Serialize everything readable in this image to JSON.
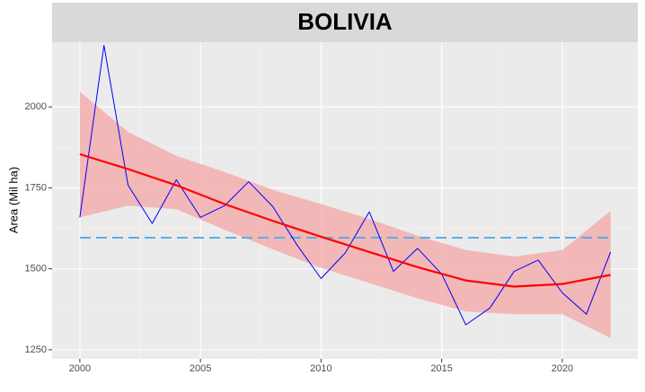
{
  "chart_data": {
    "type": "line",
    "title": "BOLIVIA",
    "y_label": "Area (Mil ha)",
    "x": [
      2000,
      2001,
      2002,
      2003,
      2004,
      2005,
      2006,
      2007,
      2008,
      2009,
      2010,
      2011,
      2012,
      2013,
      2014,
      2015,
      2016,
      2017,
      2018,
      2019,
      2020,
      2021,
      2022
    ],
    "values": [
      1659,
      2190,
      1758,
      1640,
      1775,
      1659,
      1695,
      1769,
      1692,
      1574,
      1470,
      1549,
      1676,
      1492,
      1563,
      1484,
      1327,
      1379,
      1492,
      1527,
      1426,
      1360,
      1552
    ],
    "color": "#0000ff",
    "smooth": {
      "x": [
        2000,
        2002,
        2004,
        2006,
        2008,
        2010,
        2012,
        2014,
        2016,
        2018,
        2020,
        2022
      ],
      "values": [
        1854,
        1808,
        1758,
        1700,
        1648,
        1599,
        1552,
        1505,
        1464,
        1445,
        1453,
        1481
      ],
      "lower": [
        1659,
        1695,
        1684,
        1621,
        1560,
        1503,
        1456,
        1409,
        1368,
        1360,
        1360,
        1286
      ],
      "upper": [
        2047,
        1923,
        1849,
        1799,
        1744,
        1700,
        1654,
        1602,
        1558,
        1538,
        1558,
        1679
      ],
      "color": "#ff0000",
      "band_color": "#f4a6a6"
    },
    "hline": {
      "value": 1596,
      "color": "#5dade2"
    },
    "xlim": [
      1998.85,
      2023.13
    ],
    "ylim": [
      1222,
      2200
    ],
    "xticks": [
      2000,
      2005,
      2010,
      2015,
      2020
    ],
    "yticks": [
      1250,
      1500,
      1750,
      2000
    ],
    "grid": true
  }
}
